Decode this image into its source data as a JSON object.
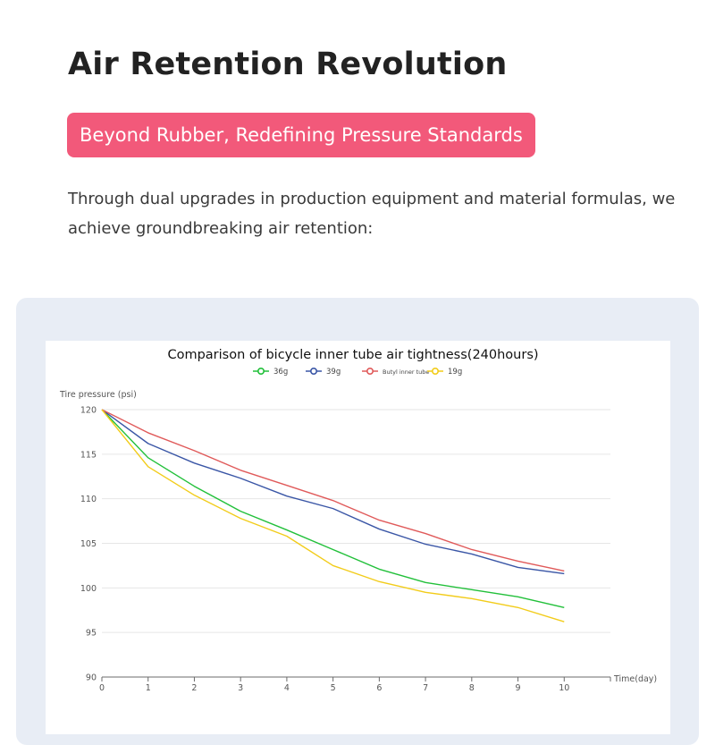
{
  "page": {
    "headline": "Air Retention Revolution",
    "tagline": "Beyond Rubber, Redefining Pressure Standards",
    "intro": "Through dual upgrades in production equipment and material formulas, we achieve groundbreaking air retention:"
  },
  "chart_data": {
    "type": "line",
    "title": "Comparison of bicycle inner tube air tightness(240hours)",
    "xlabel": "Time(day)",
    "ylabel": "Tire pressure (psi)",
    "x": [
      0,
      1,
      2,
      3,
      4,
      5,
      6,
      7,
      8,
      9,
      10
    ],
    "xlim": [
      0,
      11
    ],
    "ylim": [
      90,
      120
    ],
    "yticks": [
      90,
      95,
      100,
      105,
      110,
      115,
      120
    ],
    "grid": true,
    "legend_position": "top-center",
    "series": [
      {
        "name": "36g",
        "color": "#22c03a",
        "values": [
          120,
          114.6,
          111.4,
          108.6,
          106.5,
          104.3,
          102.1,
          100.6,
          99.8,
          99.0,
          97.8
        ]
      },
      {
        "name": "39g",
        "color": "#3a56a6",
        "values": [
          120,
          116.2,
          114.0,
          112.3,
          110.3,
          108.9,
          106.6,
          104.9,
          103.8,
          102.3,
          101.6
        ]
      },
      {
        "name": "Butyl inner tube",
        "color": "#e05a5a",
        "values": [
          120,
          117.4,
          115.4,
          113.2,
          111.5,
          109.8,
          107.6,
          106.1,
          104.3,
          103.0,
          101.9
        ]
      },
      {
        "name": "19g",
        "color": "#f2cc1a",
        "values": [
          120,
          113.6,
          110.4,
          107.8,
          105.8,
          102.5,
          100.7,
          99.5,
          98.8,
          97.8,
          96.2
        ]
      }
    ]
  }
}
